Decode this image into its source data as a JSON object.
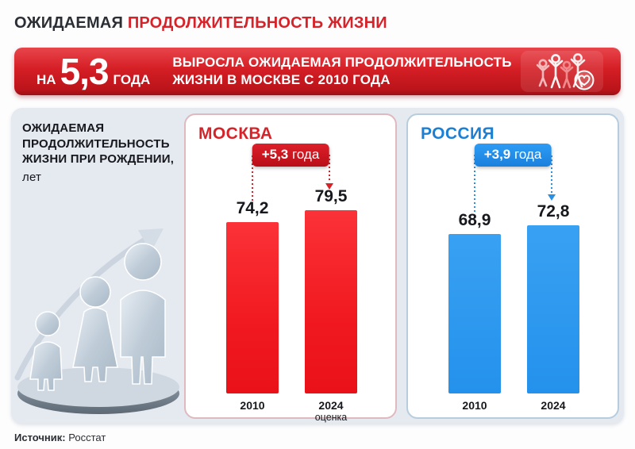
{
  "page": {
    "title_black": "ОЖИДАЕМАЯ",
    "title_red": "ПРОДОЛЖИТЕЛЬНОСТЬ ЖИЗНИ",
    "source_label": "Источник:",
    "source_value": "Росстат"
  },
  "banner": {
    "prefix": "НА",
    "big_number": "5,3",
    "suffix": "ГОДА",
    "line1": "ВЫРОСЛА ОЖИДАЕМАЯ ПРОДОЛЖИТЕЛЬНОСТЬ",
    "line2": "ЖИЗНИ В МОСКВЕ С 2010 ГОДА",
    "icon": "family-with-heart-icon"
  },
  "sidebar": {
    "heading_line1": "ОЖИДАЕМАЯ",
    "heading_line2": "ПРОДОЛЖИТЕЛЬНОСТЬ",
    "heading_line3": "ЖИЗНИ ПРИ РОЖДЕНИИ,",
    "unit": "лет",
    "illustration": "family-growth-statue-with-rising-arrow"
  },
  "colors": {
    "accent_red": "#d6232a",
    "bar_red": "#f0191f",
    "accent_blue": "#1b7fd4",
    "bar_blue": "#2e9bf0",
    "container_bg": "#e5e9f0"
  },
  "chart_data": [
    {
      "type": "bar",
      "title": "МОСКВА",
      "badge_value": "+5,3",
      "badge_unit": "года",
      "categories": [
        "2010",
        "2024"
      ],
      "category_notes": [
        "",
        "оценка"
      ],
      "values": [
        74.2,
        79.5
      ],
      "value_labels": [
        "74,2",
        "79,5"
      ],
      "ylabel": "лет",
      "legend": "none",
      "grid": false
    },
    {
      "type": "bar",
      "title": "РОССИЯ",
      "badge_value": "+3,9",
      "badge_unit": "года",
      "categories": [
        "2010",
        "2024"
      ],
      "category_notes": [
        "",
        ""
      ],
      "values": [
        68.9,
        72.8
      ],
      "value_labels": [
        "68,9",
        "72,8"
      ],
      "ylabel": "лет",
      "legend": "none",
      "grid": false
    }
  ]
}
